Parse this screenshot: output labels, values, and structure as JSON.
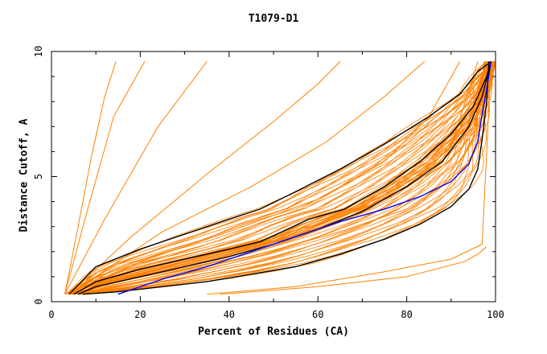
{
  "chart_data": {
    "type": "line",
    "title": "T1079-D1",
    "xlabel": "Percent of Residues (CA)",
    "ylabel": "Distance Cutoff, A",
    "xlim": [
      0,
      100
    ],
    "ylim": [
      0,
      10
    ],
    "xticks": [
      "0",
      "20",
      "40",
      "60",
      "80",
      "100"
    ],
    "yticks": [
      "0",
      "5",
      "10"
    ],
    "grid": false,
    "colors": {
      "models": "#ff8000",
      "reference": "#000000",
      "highlight": "#0000ff"
    },
    "series": [
      {
        "group": "reference",
        "x": [
          4,
          10,
          20,
          30,
          40,
          47,
          55,
          65,
          75,
          85,
          92,
          96,
          99
        ],
        "y": [
          0.3,
          1.4,
          2.1,
          2.7,
          3.3,
          3.7,
          4.4,
          5.3,
          6.3,
          7.4,
          8.3,
          9.2,
          9.6
        ]
      },
      {
        "group": "reference",
        "x": [
          5,
          10,
          20,
          30,
          40,
          47,
          52,
          58,
          66,
          75,
          83,
          90,
          95,
          98,
          99
        ],
        "y": [
          0.3,
          0.8,
          1.3,
          1.7,
          2.1,
          2.4,
          2.8,
          3.3,
          3.7,
          4.6,
          5.6,
          6.7,
          7.8,
          9.0,
          9.6
        ]
      },
      {
        "group": "reference",
        "x": [
          6,
          10,
          20,
          30,
          40,
          50,
          60,
          70,
          80,
          88,
          94,
          97,
          99
        ],
        "y": [
          0.3,
          0.6,
          1.0,
          1.4,
          1.8,
          2.3,
          2.9,
          3.6,
          4.6,
          5.6,
          7.0,
          8.2,
          9.6
        ]
      },
      {
        "group": "reference",
        "x": [
          7,
          15,
          25,
          35,
          45,
          55,
          65,
          75,
          83,
          90,
          94,
          96,
          97,
          98,
          98.5
        ],
        "y": [
          0.3,
          0.4,
          0.6,
          0.8,
          1.1,
          1.4,
          1.9,
          2.5,
          3.1,
          3.8,
          4.5,
          5.3,
          6.5,
          8.0,
          9.6
        ]
      },
      {
        "group": "highlight",
        "x": [
          15,
          25,
          35,
          45,
          55,
          65,
          75,
          83,
          90,
          94,
          96,
          97,
          98,
          99
        ],
        "y": [
          0.3,
          0.9,
          1.4,
          2.0,
          2.6,
          3.2,
          3.7,
          4.2,
          4.8,
          5.5,
          6.4,
          7.5,
          8.5,
          9.6
        ]
      },
      {
        "group": "models",
        "x": [
          3,
          6,
          9,
          12,
          14.5
        ],
        "y": [
          0.3,
          3.0,
          5.8,
          8.2,
          9.6
        ]
      },
      {
        "group": "models",
        "x": [
          3,
          8,
          14,
          21
        ],
        "y": [
          0.3,
          3.6,
          7.4,
          9.6
        ]
      },
      {
        "group": "models",
        "x": [
          3,
          12,
          24,
          35
        ],
        "y": [
          0.3,
          3.3,
          7.0,
          9.6
        ]
      },
      {
        "group": "models",
        "x": [
          4,
          18,
          35,
          50,
          60,
          65
        ],
        "y": [
          0.3,
          2.6,
          5.1,
          7.2,
          8.7,
          9.6
        ]
      },
      {
        "group": "models",
        "x": [
          4,
          25,
          45,
          62,
          75,
          84
        ],
        "y": [
          0.3,
          2.8,
          4.6,
          6.4,
          8.2,
          9.6
        ]
      },
      {
        "group": "models",
        "x": [
          5,
          20,
          40,
          60,
          75,
          85,
          92
        ],
        "y": [
          0.3,
          1.6,
          2.8,
          4.1,
          5.6,
          7.4,
          9.6
        ]
      },
      {
        "group": "models",
        "x": [
          5,
          20,
          40,
          60,
          78,
          90,
          96
        ],
        "y": [
          0.3,
          1.1,
          2.1,
          3.1,
          4.3,
          6.2,
          9.6
        ]
      },
      {
        "group": "models",
        "x": [
          6,
          25,
          45,
          65,
          80,
          90,
          95,
          97.5
        ],
        "y": [
          0.3,
          1.0,
          1.8,
          2.8,
          3.7,
          4.9,
          6.6,
          9.6
        ]
      },
      {
        "group": "models",
        "x": [
          35,
          55,
          75,
          90,
          97,
          99
        ],
        "y": [
          0.3,
          0.6,
          1.2,
          1.7,
          2.3,
          9.6
        ]
      },
      {
        "group": "models",
        "x": [
          38,
          60,
          80,
          93,
          96,
          98
        ],
        "y": [
          0.3,
          0.6,
          1.0,
          1.6,
          1.9,
          2.2
        ]
      }
    ]
  }
}
